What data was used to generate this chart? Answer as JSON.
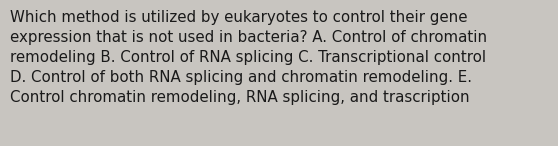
{
  "text": "Which method is utilized by eukaryotes to control their gene\nexpression that is not used in bacteria? A. Control of chromatin\nremodeling B. Control of RNA splicing C. Transcriptional control\nD. Control of both RNA splicing and chromatin remodeling. E.\nControl chromatin remodeling, RNA splicing, and trascription",
  "background_color": "#c8c5c0",
  "text_color": "#1a1a1a",
  "font_size": 10.8,
  "fig_width": 5.58,
  "fig_height": 1.46,
  "dpi": 100
}
